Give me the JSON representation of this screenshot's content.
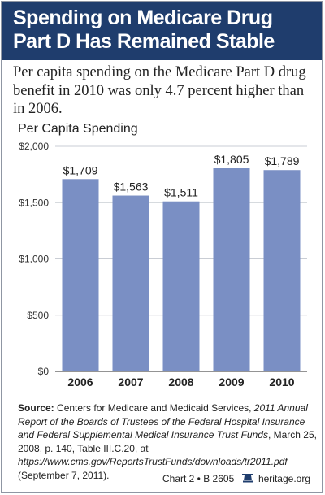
{
  "header": {
    "title_line1": "Spending on Medicare Drug",
    "title_line2": "Part D Has Remained Stable"
  },
  "subtitle": "Per capita spending on the Medicare Part D drug benefit in 2010 was only 4.7 percent higher than in 2006.",
  "colors": {
    "header_bg": "#1f3d6d",
    "bar": "#7a8fc4",
    "grid": "#c9cdd4"
  },
  "chart_data": {
    "type": "bar",
    "title": "Per Capita Spending",
    "categories": [
      "2006",
      "2007",
      "2008",
      "2009",
      "2010"
    ],
    "values": [
      1709,
      1563,
      1511,
      1805,
      1789
    ],
    "value_labels": [
      "$1,709",
      "$1,563",
      "$1,511",
      "$1,805",
      "$1,789"
    ],
    "ylim": [
      0,
      2000
    ],
    "yticks": [
      0,
      500,
      1000,
      1500,
      2000
    ],
    "ytick_labels": [
      "$0",
      "$500",
      "$1,000",
      "$1,500",
      "$2,000"
    ],
    "xlabel": "",
    "ylabel": "",
    "grid": true,
    "legend": null
  },
  "source": {
    "lead": "Source:",
    "text1": " Centers for Medicare and Medicaid Services, ",
    "italic1": "2011 Annual Report of the Boards of Trustees of the Federal Hospital Insurance and Federal Supplemental Medical Insurance Trust Funds",
    "text2": ", March 25, 2008, p. 140, Table III.C.20, at ",
    "italic2": "https://www.cms.gov/ReportsTrustFunds/downloads/tr2011.pdf",
    "text3": " (September 7, 2011)."
  },
  "footer": {
    "chart_id": "Chart 2 • B 2605",
    "site": "heritage.org",
    "logo_icon": "liberty-bell-icon"
  }
}
